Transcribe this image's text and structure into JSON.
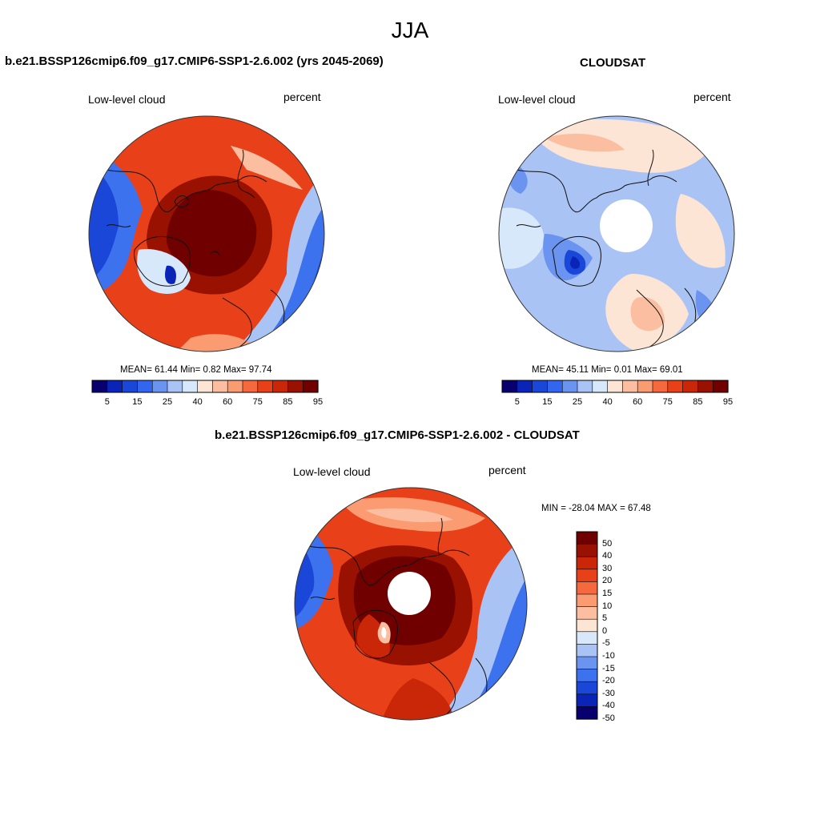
{
  "season": "JJA",
  "panels": {
    "model": {
      "title": "b.e21.BSSP126cmip6.f09_g17.CMIP6-SSP1-2.6.002 (yrs 2045-2069)",
      "left_label": "Low-level cloud",
      "right_label": "percent",
      "stats": "MEAN=  61.44  Min=   0.82  Max=  97.74"
    },
    "obs": {
      "title": "CLOUDSAT",
      "left_label": "Low-level cloud",
      "right_label": "percent",
      "stats": "MEAN=  45.11  Min=   0.01  Max=  69.01"
    },
    "diff": {
      "title": "b.e21.BSSP126cmip6.f09_g17.CMIP6-SSP1-2.6.002 - CLOUDSAT",
      "left_label": "Low-level cloud",
      "right_label": "percent",
      "stats": "MIN = -28.04 MAX =  67.48"
    }
  },
  "colorbar_abs": {
    "colors": [
      "#08006e",
      "#0a24b8",
      "#1a47d8",
      "#3366ee",
      "#6b93f0",
      "#a9c3f5",
      "#d8e8fb",
      "#fde5d6",
      "#fcbea0",
      "#fb9b72",
      "#f6683e",
      "#e8411a",
      "#c92707",
      "#991100",
      "#700000"
    ],
    "labels": [
      "5",
      "15",
      "25",
      "40",
      "60",
      "75",
      "85",
      "95"
    ]
  },
  "colorbar_diff": {
    "colors": [
      "#700000",
      "#991100",
      "#c92707",
      "#e8411a",
      "#f6683e",
      "#fb9b72",
      "#fcbea0",
      "#fde5d6",
      "#d8e8fb",
      "#a9c3f5",
      "#6b93f0",
      "#3d72ee",
      "#1a47d8",
      "#0a24b8",
      "#08006e"
    ],
    "labels": [
      "50",
      "40",
      "30",
      "20",
      "15",
      "10",
      "5",
      "0",
      "-5",
      "-10",
      "-15",
      "-20",
      "-30",
      "-40",
      "-50"
    ]
  }
}
